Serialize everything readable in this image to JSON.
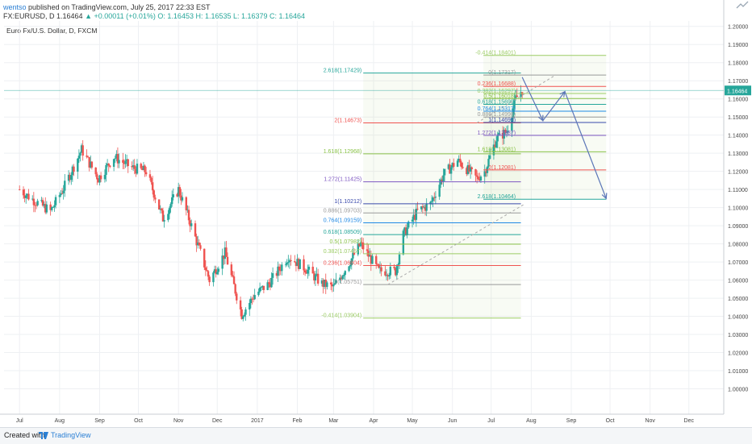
{
  "header": {
    "author": "wentso",
    "published": "published on TradingView.com, July 25, 2017 22:33 EST",
    "symbol": "FX:EURUSD, D",
    "last": "1.16464",
    "change": "▲ +0.00011 (+0.01%)",
    "ohlc": "O: 1.16453 H: 1.16535 L: 1.16379 C: 1.16464"
  },
  "chart_title": "Euro Fx/U.S. Dollar, D, FXCM",
  "footer": {
    "created": "Created with",
    "brand": "TradingView"
  },
  "colors": {
    "up": "#26a69a",
    "down": "#ef5350",
    "grid": "#eef0f3",
    "projection": "#5b76b8",
    "price_badge": "#26a69a"
  },
  "icons": [
    "trend-line-logo-icon",
    "tradingview-icon"
  ],
  "chart_data": {
    "type": "candlestick",
    "title": "Euro Fx/U.S. Dollar, D, FXCM",
    "x_ticks": [
      "Jul",
      "Aug",
      "Sep",
      "Oct",
      "Nov",
      "Dec",
      "2017",
      "Feb",
      "Mar",
      "Apr",
      "May",
      "Jun",
      "Jul",
      "Aug",
      "Sep",
      "Oct",
      "Nov",
      "Dec"
    ],
    "y_ticks": [
      "1.00000",
      "1.01000",
      "1.02000",
      "1.03000",
      "1.04000",
      "1.05000",
      "1.06000",
      "1.07000",
      "1.08000",
      "1.09000",
      "1.10000",
      "1.11000",
      "1.12000",
      "1.13000",
      "1.14000",
      "1.15000",
      "1.16000",
      "1.17000",
      "1.18000",
      "1.19000",
      "1.20000"
    ],
    "ylim": [
      0.986,
      1.203
    ],
    "last_price": "1.16464",
    "series_path": [
      [
        "2016-07-01",
        1.11
      ],
      [
        "2016-07-10",
        1.105
      ],
      [
        "2016-07-25",
        1.098
      ],
      [
        "2016-08-05",
        1.112
      ],
      [
        "2016-08-18",
        1.132
      ],
      [
        "2016-08-31",
        1.116
      ],
      [
        "2016-09-12",
        1.128
      ],
      [
        "2016-09-26",
        1.122
      ],
      [
        "2016-10-07",
        1.12
      ],
      [
        "2016-10-20",
        1.094
      ],
      [
        "2016-11-01",
        1.11
      ],
      [
        "2016-11-10",
        1.092
      ],
      [
        "2016-11-25",
        1.06
      ],
      [
        "2016-12-07",
        1.075
      ],
      [
        "2016-12-20",
        1.041
      ],
      [
        "2016-12-30",
        1.052
      ],
      [
        "2017-01-10",
        1.058
      ],
      [
        "2017-01-25",
        1.073
      ],
      [
        "2017-02-08",
        1.066
      ],
      [
        "2017-02-20",
        1.058
      ],
      [
        "2017-03-01",
        1.056
      ],
      [
        "2017-03-10",
        1.066
      ],
      [
        "2017-03-22",
        1.08
      ],
      [
        "2017-04-05",
        1.065
      ],
      [
        "2017-04-18",
        1.065
      ],
      [
        "2017-04-24",
        1.085
      ],
      [
        "2017-05-05",
        1.098
      ],
      [
        "2017-05-15",
        1.102
      ],
      [
        "2017-05-25",
        1.118
      ],
      [
        "2017-06-05",
        1.126
      ],
      [
        "2017-06-20",
        1.116
      ],
      [
        "2017-06-26",
        1.12
      ],
      [
        "2017-07-05",
        1.138
      ],
      [
        "2017-07-13",
        1.142
      ],
      [
        "2017-07-20",
        1.16
      ],
      [
        "2017-07-25",
        1.165
      ]
    ],
    "fib_left": [
      {
        "label": "2.618(1.17429)",
        "price": 1.17429,
        "color": "#26a69a"
      },
      {
        "label": "2(1.14673)",
        "price": 1.14673,
        "color": "#ef5350"
      },
      {
        "label": "1.618(1.12968)",
        "price": 1.12968,
        "color": "#8bc34a"
      },
      {
        "label": "1.272(1.11425)",
        "price": 1.11425,
        "color": "#7e57c2"
      },
      {
        "label": "1(1.10212)",
        "price": 1.10212,
        "color": "#3949ab"
      },
      {
        "label": "0.886(1.09703)",
        "price": 1.09703,
        "color": "#999999"
      },
      {
        "label": "0.764(1.09159)",
        "price": 1.09159,
        "color": "#1e88e5"
      },
      {
        "label": "0.618(1.08509)",
        "price": 1.08509,
        "color": "#26a69a"
      },
      {
        "label": "0.5(1.07982)",
        "price": 1.07982,
        "color": "#8bc34a"
      },
      {
        "label": "0.382(1.07457)",
        "price": 1.07457,
        "color": "#9ccc65"
      },
      {
        "label": "0.236(1.06804)",
        "price": 1.06804,
        "color": "#ef5350"
      },
      {
        "label": "0(1.05751)",
        "price": 1.05751,
        "color": "#999999"
      },
      {
        "label": "-0.414(1.03904)",
        "price": 1.03904,
        "color": "#9ccc65"
      }
    ],
    "fib_right": [
      {
        "label": "-0.414(1.18401)",
        "price": 1.18401,
        "color": "#9ccc65"
      },
      {
        "label": "0(1.17317)",
        "price": 1.17317,
        "color": "#999999"
      },
      {
        "label": "0.236(1.16688)",
        "price": 1.16688,
        "color": "#ef5350"
      },
      {
        "label": "0.382(1.16297)",
        "price": 1.16297,
        "color": "#9ccc65"
      },
      {
        "label": "0.5(1.16018)",
        "price": 1.16018,
        "color": "#8bc34a"
      },
      {
        "label": "0.618(1.15699)",
        "price": 1.15699,
        "color": "#26a69a"
      },
      {
        "label": "0.764(1.15317)",
        "price": 1.15317,
        "color": "#1e88e5"
      },
      {
        "label": "0.886(1.14998)",
        "price": 1.14998,
        "color": "#999999"
      },
      {
        "label": "1(1.14699)",
        "price": 1.14699,
        "color": "#3949ab"
      },
      {
        "label": "1.272(1.13987)",
        "price": 1.13987,
        "color": "#7e57c2"
      },
      {
        "label": "1.618(1.13081)",
        "price": 1.13081,
        "color": "#8bc34a"
      },
      {
        "label": "2(1.12081)",
        "price": 1.12081,
        "color": "#ef5350"
      },
      {
        "label": "2.618(1.10464)",
        "price": 1.10464,
        "color": "#26a69a"
      }
    ],
    "projection": [
      [
        "2017-07-25",
        1.172
      ],
      [
        "2017-08-10",
        1.148
      ],
      [
        "2017-08-27",
        1.164
      ],
      [
        "2017-09-28",
        1.105
      ]
    ],
    "grid": true
  }
}
